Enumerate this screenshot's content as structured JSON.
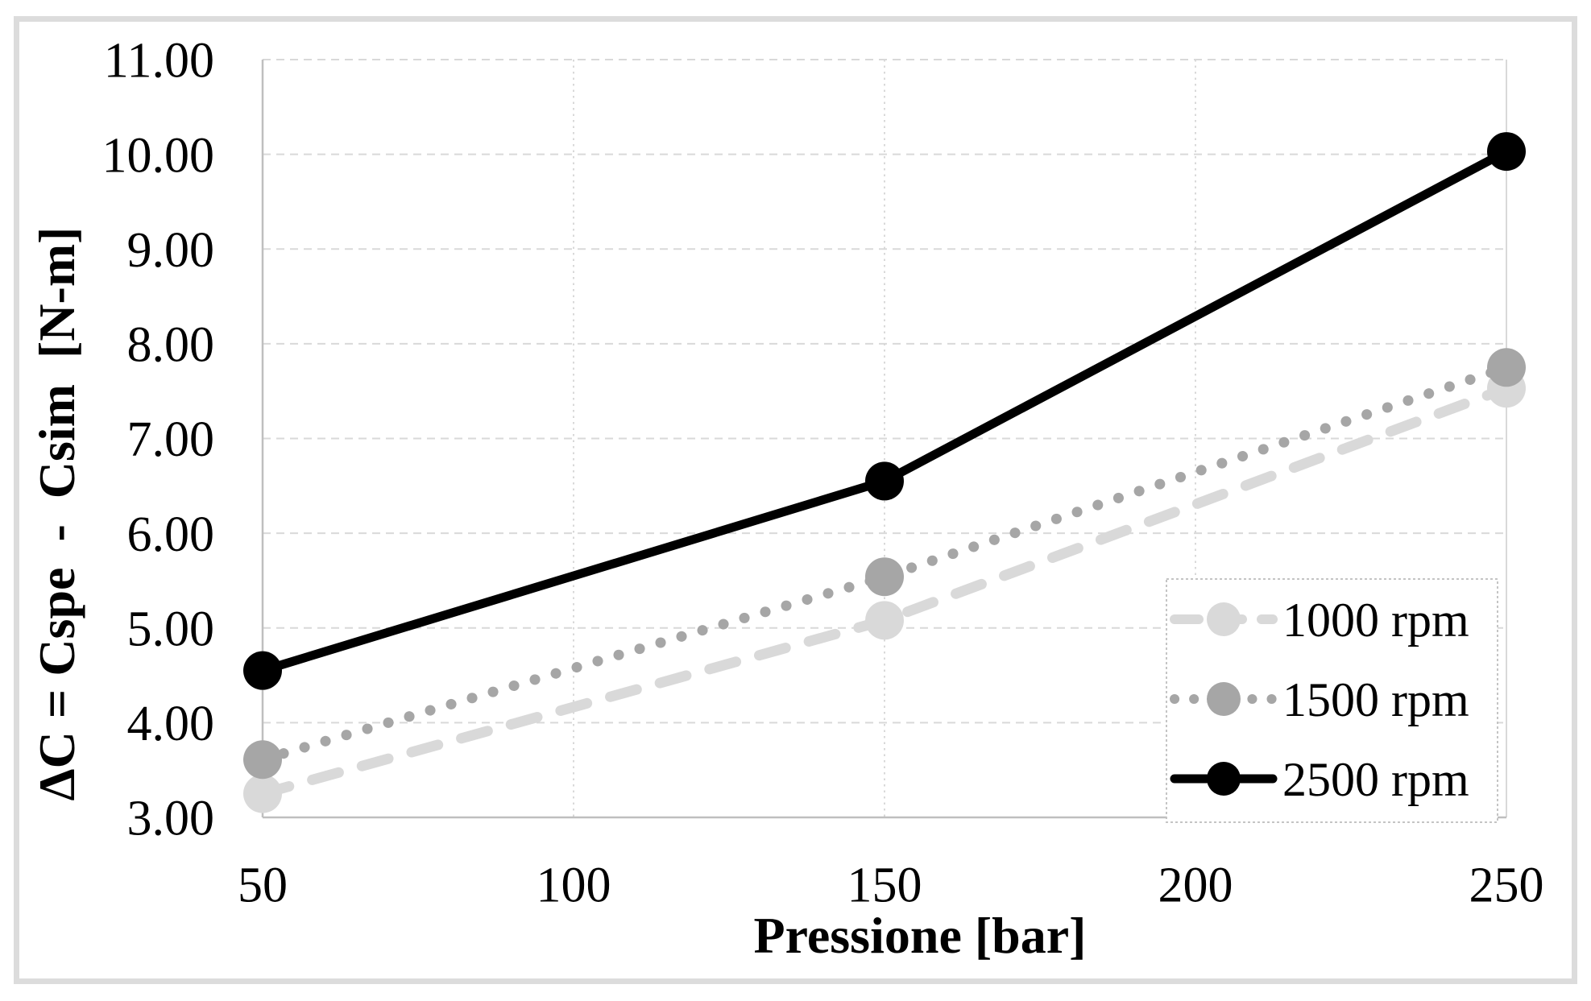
{
  "figure": {
    "background": "#ffffff",
    "border_color": "#dcdcdc"
  },
  "colors": {
    "gridline": "#d9d9d9",
    "axis_line": "#bfbfbf",
    "plot_right_border": "#d9d9d9",
    "legend_border": "#c4c4c4",
    "legend_fill": "#ffffff",
    "text": "#000000"
  },
  "chart_data": {
    "type": "line",
    "title": "",
    "xlabel": "Pressione [bar]",
    "ylabel": "ΔC = Cspe  -  Csim  [N-m]",
    "x": [
      50,
      150,
      250
    ],
    "xlim": [
      50,
      250
    ],
    "ylim": [
      3,
      11
    ],
    "x_ticks": [
      50,
      100,
      150,
      200,
      250
    ],
    "x_tick_labels": [
      "50",
      "100",
      "150",
      "200",
      "250"
    ],
    "y_ticks": [
      3,
      4,
      5,
      6,
      7,
      8,
      9,
      10,
      11
    ],
    "y_tick_labels": [
      "3.00",
      "4.00",
      "5.00",
      "6.00",
      "7.00",
      "8.00",
      "9.00",
      "10.00",
      "11.00"
    ],
    "grid": true,
    "legend_position": "bottom-right",
    "series": [
      {
        "name": "1000 rpm",
        "values": [
          3.25,
          5.08,
          7.53
        ],
        "color": "#d9d9d9",
        "line_style": "dashed",
        "marker": "circle"
      },
      {
        "name": "1500 rpm",
        "values": [
          3.61,
          5.54,
          7.75
        ],
        "color": "#a6a6a6",
        "line_style": "dotted",
        "marker": "circle"
      },
      {
        "name": "2500 rpm",
        "values": [
          4.55,
          6.55,
          10.03
        ],
        "color": "#000000",
        "line_style": "solid",
        "marker": "circle"
      }
    ]
  }
}
